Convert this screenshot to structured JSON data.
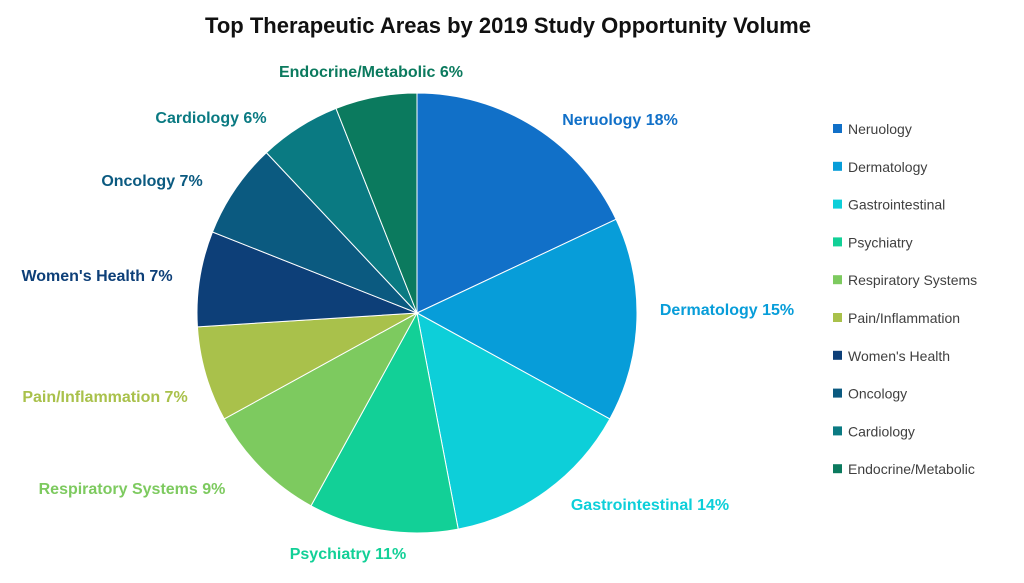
{
  "chart_data": {
    "type": "pie",
    "title": "Top Therapeutic Areas by 2019 Study Opportunity Volume",
    "legend_position": "right",
    "categories": [
      "Neruology",
      "Dermatology",
      "Gastrointestinal",
      "Psychiatry",
      "Respiratory Systems",
      "Pain/Inflammation",
      "Women's Health",
      "Oncology",
      "Cardiology",
      "Endocrine/Metabolic"
    ],
    "values": [
      18,
      15,
      14,
      11,
      9,
      7,
      7,
      7,
      6,
      6
    ],
    "data_labels": [
      "Neruology 18%",
      "Dermatology 15%",
      "Gastrointestinal 14%",
      "Psychiatry 11%",
      "Respiratory Systems 9%",
      "Pain/Inflammation 7%",
      "Women's Health 7%",
      "Oncology 7%",
      "Cardiology 6%",
      "Endocrine/Metabolic 6%"
    ],
    "colors": [
      "#1170c8",
      "#079dd9",
      "#0dcfd9",
      "#12d097",
      "#7dca5f",
      "#a9c14b",
      "#0d3f78",
      "#0b5a80",
      "#0a7a82",
      "#0b7a5e"
    ]
  }
}
